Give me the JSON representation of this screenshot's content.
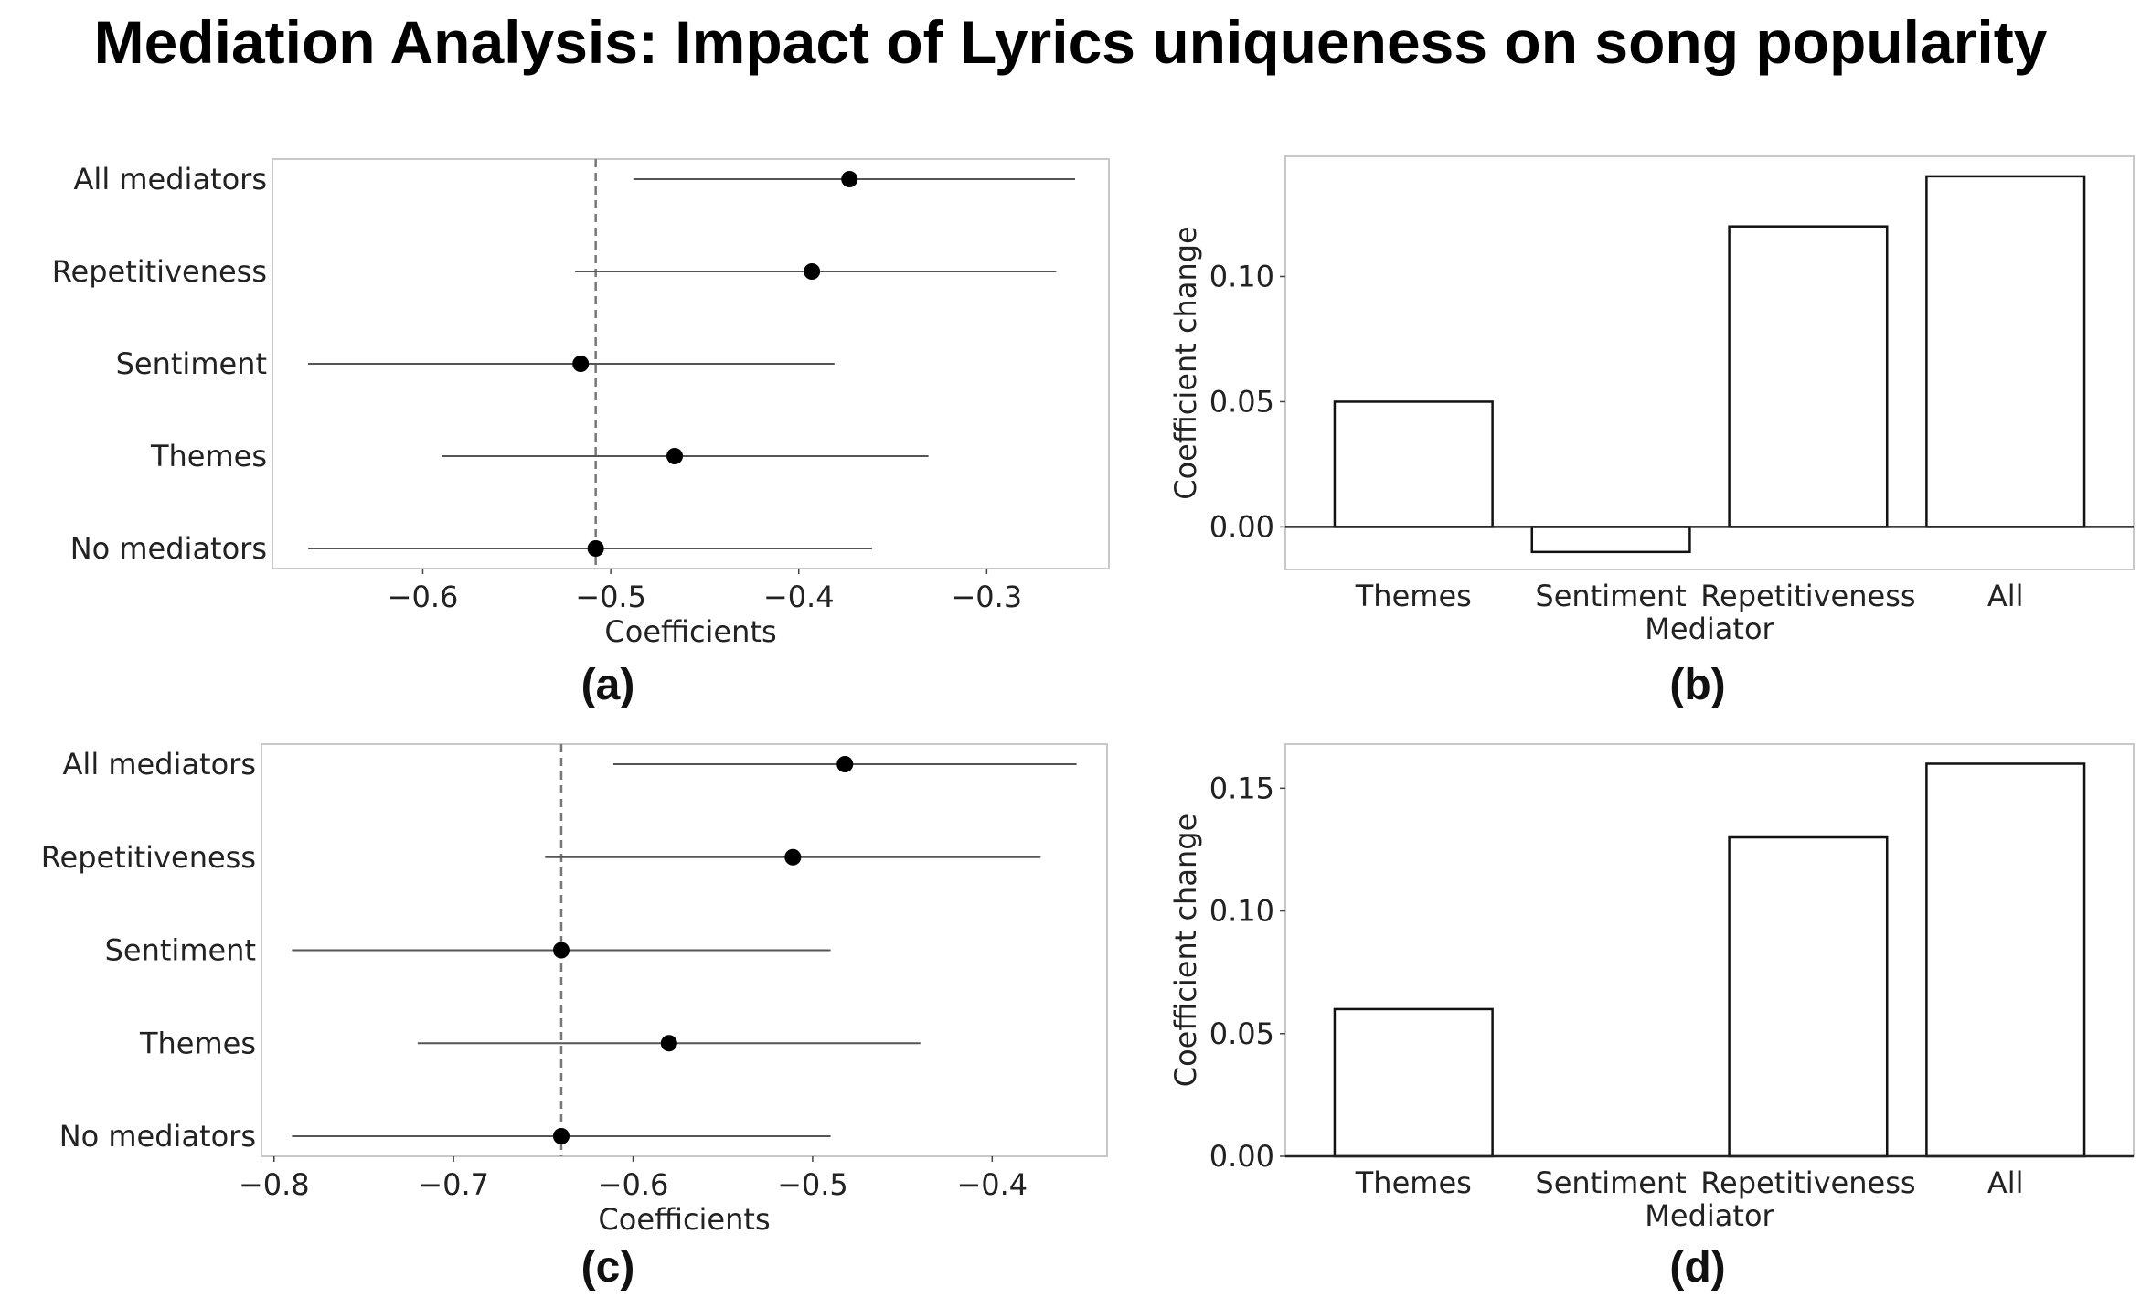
{
  "title": "Mediation Analysis: Impact of Lyrics uniqueness on song popularity",
  "chart_data": [
    {
      "panel": "(a)",
      "type": "scatter",
      "subtype": "forest-plot",
      "xlabel": "Coefficients",
      "ylabel": "",
      "xlim": [
        -0.68,
        -0.235
      ],
      "x_ticks": [
        -0.6,
        -0.5,
        -0.4,
        -0.3
      ],
      "x_tick_labels": [
        "−0.6",
        "−0.5",
        "−0.4",
        "−0.3"
      ],
      "reference_line": -0.508,
      "categories": [
        "All mediators",
        "Repetitiveness",
        "Sentiment",
        "Themes",
        "No mediators"
      ],
      "estimates": [
        -0.373,
        -0.393,
        -0.516,
        -0.466,
        -0.508
      ],
      "ci_low": [
        -0.488,
        -0.519,
        -0.661,
        -0.59,
        -0.661
      ],
      "ci_high": [
        -0.253,
        -0.263,
        -0.381,
        -0.331,
        -0.361
      ],
      "grid": false
    },
    {
      "panel": "(b)",
      "type": "bar",
      "xlabel": "Mediator",
      "ylabel": "Coefficient change",
      "ylim": [
        -0.017,
        0.148
      ],
      "y_ticks": [
        0.0,
        0.05,
        0.1
      ],
      "y_tick_labels": [
        "0.00",
        "0.05",
        "0.10"
      ],
      "categories": [
        "Themes",
        "Sentiment",
        "Repetitiveness",
        "All"
      ],
      "values": [
        0.05,
        -0.01,
        0.12,
        0.14
      ],
      "grid": false
    },
    {
      "panel": "(c)",
      "type": "scatter",
      "subtype": "forest-plot",
      "xlabel": "Coefficients",
      "ylabel": "",
      "xlim": [
        -0.807,
        -0.336
      ],
      "x_ticks": [
        -0.8,
        -0.7,
        -0.6,
        -0.5,
        -0.4
      ],
      "x_tick_labels": [
        "−0.8",
        "−0.7",
        "−0.6",
        "−0.5",
        "−0.4"
      ],
      "reference_line": -0.64,
      "categories": [
        "All mediators",
        "Repetitiveness",
        "Sentiment",
        "Themes",
        "No mediators"
      ],
      "estimates": [
        -0.482,
        -0.511,
        -0.64,
        -0.58,
        -0.64
      ],
      "ci_low": [
        -0.611,
        -0.649,
        -0.79,
        -0.72,
        -0.79
      ],
      "ci_high": [
        -0.353,
        -0.373,
        -0.49,
        -0.44,
        -0.49
      ],
      "grid": false
    },
    {
      "panel": "(d)",
      "type": "bar",
      "xlabel": "Mediator",
      "ylabel": "Coefficient change",
      "ylim": [
        0.0,
        0.168
      ],
      "y_ticks": [
        0.0,
        0.05,
        0.1,
        0.15
      ],
      "y_tick_labels": [
        "0.00",
        "0.05",
        "0.10",
        "0.15"
      ],
      "categories": [
        "Themes",
        "Sentiment",
        "Repetitiveness",
        "All"
      ],
      "values": [
        0.06,
        0.0,
        0.13,
        0.16
      ],
      "grid": false
    }
  ]
}
